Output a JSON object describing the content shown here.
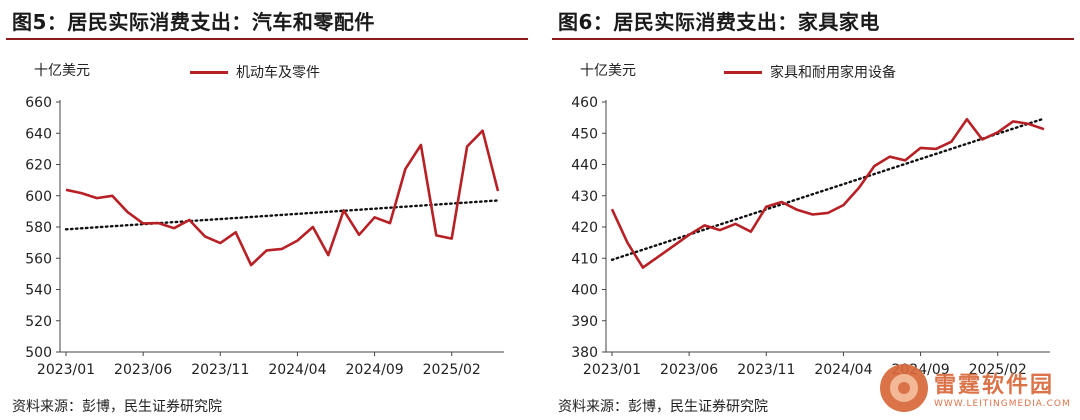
{
  "charts": {
    "left": {
      "title": "图5：居民实际消费支出：汽车和零配件",
      "unit": "十亿美元",
      "source": "资料来源：彭博，民生证券研究院"
    },
    "right": {
      "title": "图6：居民实际消费支出：家具家电",
      "unit": "十亿美元",
      "source": "资料来源：彭博，民生证券研究院"
    }
  },
  "watermark": {
    "name": "雷霆软件园",
    "url": "WWW.LEITINGMEDIA.COM"
  },
  "colors": {
    "series": "#b72025",
    "trend": "#111111",
    "title_rule": "#8b1a1a"
  },
  "chart_data": [
    {
      "type": "line",
      "title": "图5：居民实际消费支出：汽车和零配件",
      "ylabel": "十亿美元",
      "ylim": [
        500,
        660
      ],
      "yticks": [
        500,
        520,
        540,
        560,
        580,
        600,
        620,
        640,
        660
      ],
      "x_tick_labels": [
        "2023/01",
        "2023/06",
        "2023/11",
        "2024/04",
        "2024/09",
        "2025/02"
      ],
      "x_tick_index": [
        0,
        5,
        10,
        15,
        20,
        25
      ],
      "x": [
        "2023/01",
        "2023/02",
        "2023/03",
        "2023/04",
        "2023/05",
        "2023/06",
        "2023/07",
        "2023/08",
        "2023/09",
        "2023/10",
        "2023/11",
        "2023/12",
        "2024/01",
        "2024/02",
        "2024/03",
        "2024/04",
        "2024/05",
        "2024/06",
        "2024/07",
        "2024/08",
        "2024/09",
        "2024/10",
        "2024/11",
        "2024/12",
        "2025/01",
        "2025/02",
        "2025/03",
        "2025/04",
        "2025/05"
      ],
      "series": [
        {
          "name": "机动车及零件",
          "values": [
            603.8,
            601.7,
            598.5,
            600.0,
            589.5,
            582.3,
            582.5,
            579.2,
            584.5,
            574.0,
            569.7,
            576.6,
            555.6,
            565.0,
            566.0,
            571.3,
            580.0,
            562.0,
            590.6,
            575.0,
            586.2,
            582.5,
            617.2,
            632.5,
            574.6,
            572.6,
            631.5,
            641.6,
            603.0
          ]
        }
      ],
      "trendline": {
        "style": "dotted",
        "start": 578.5,
        "end": 597.0
      },
      "grid": false,
      "legend": "top-center"
    },
    {
      "type": "line",
      "title": "图6：居民实际消费支出：家具家电",
      "ylabel": "十亿美元",
      "ylim": [
        380,
        460
      ],
      "yticks": [
        380,
        390,
        400,
        410,
        420,
        430,
        440,
        450,
        460
      ],
      "x_tick_labels": [
        "2023/01",
        "2023/06",
        "2023/11",
        "2024/04",
        "2024/09",
        "2025/02"
      ],
      "x_tick_index": [
        0,
        5,
        10,
        15,
        20,
        25
      ],
      "x": [
        "2023/01",
        "2023/02",
        "2023/03",
        "2023/04",
        "2023/05",
        "2023/06",
        "2023/07",
        "2023/08",
        "2023/09",
        "2023/10",
        "2023/11",
        "2023/12",
        "2024/01",
        "2024/02",
        "2024/03",
        "2024/04",
        "2024/05",
        "2024/06",
        "2024/07",
        "2024/08",
        "2024/09",
        "2024/10",
        "2024/11",
        "2024/12",
        "2025/01",
        "2025/02",
        "2025/03",
        "2025/04",
        "2025/05"
      ],
      "series": [
        {
          "name": "家具和耐用家用设备",
          "values": [
            425.7,
            415.0,
            407.0,
            410.5,
            414.0,
            417.5,
            420.5,
            419.0,
            421.0,
            418.5,
            426.5,
            428.0,
            425.5,
            424.0,
            424.5,
            427.0,
            432.5,
            439.5,
            442.5,
            441.3,
            445.3,
            445.0,
            447.3,
            454.5,
            448.0,
            450.3,
            453.8,
            453.0,
            451.3
          ]
        }
      ],
      "trendline": {
        "style": "dotted",
        "start": 409.5,
        "end": 454.7
      },
      "grid": false,
      "legend": "top-center"
    }
  ]
}
